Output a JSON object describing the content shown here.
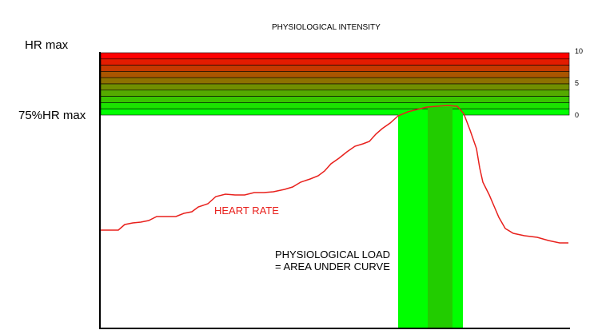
{
  "title": "PHYSIOLOGICAL INTENSITY",
  "y_labels": {
    "hr_max": "HR max",
    "hr_75": "75%HR max"
  },
  "intensity_scale": {
    "top": "10",
    "mid": "5",
    "bottom": "0"
  },
  "curve_label": "HEART RATE",
  "load_label": {
    "line1": "PHYSIOLOGICAL LOAD",
    "line2": "= AREA UNDER CURVE"
  },
  "colors": {
    "curve": "#e8201c",
    "band_top": "#ff0000",
    "band_bottom": "#00ff00",
    "load_light": "#00ff00",
    "load_dark": "#22cc00",
    "axis": "#000000"
  }
}
